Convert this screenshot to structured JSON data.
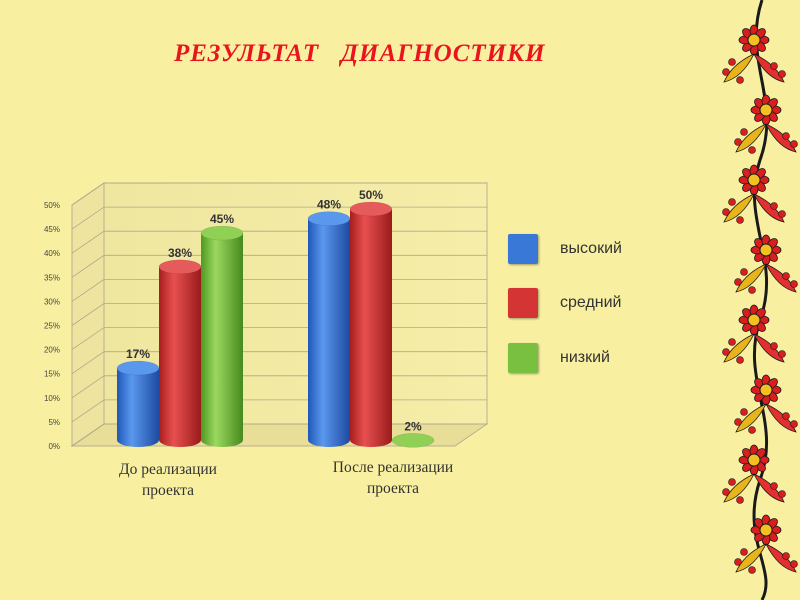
{
  "slide": {
    "title": "РЕЗУЛЬТАТ   ДИАГНОСТИКИ"
  },
  "colors": {
    "background": "#f8f0a0",
    "title": "#e8141e",
    "high": "#3a78d8",
    "medium": "#d43434",
    "low": "#7ac040"
  },
  "chart_data": {
    "type": "bar",
    "title": "",
    "xlabel": "",
    "ylabel": "",
    "ylim": [
      0,
      50
    ],
    "yticks": [
      "0%",
      "5%",
      "10%",
      "15%",
      "20%",
      "25%",
      "30%",
      "35%",
      "40%",
      "45%",
      "50%"
    ],
    "categories": [
      "До реализации\nпроекта",
      "После реализации\nпроекта"
    ],
    "series": [
      {
        "name": "высокий",
        "values": [
          17,
          48
        ],
        "labels": [
          "17%",
          "48%"
        ]
      },
      {
        "name": "средний",
        "values": [
          38,
          50
        ],
        "labels": [
          "38%",
          "50%"
        ]
      },
      {
        "name": "низкий",
        "values": [
          45,
          2
        ],
        "labels": [
          "45%",
          "2%"
        ]
      }
    ],
    "legend_position": "right",
    "grid": true
  },
  "decoration": {
    "icon": "khokhloma-floral-border-icon"
  }
}
